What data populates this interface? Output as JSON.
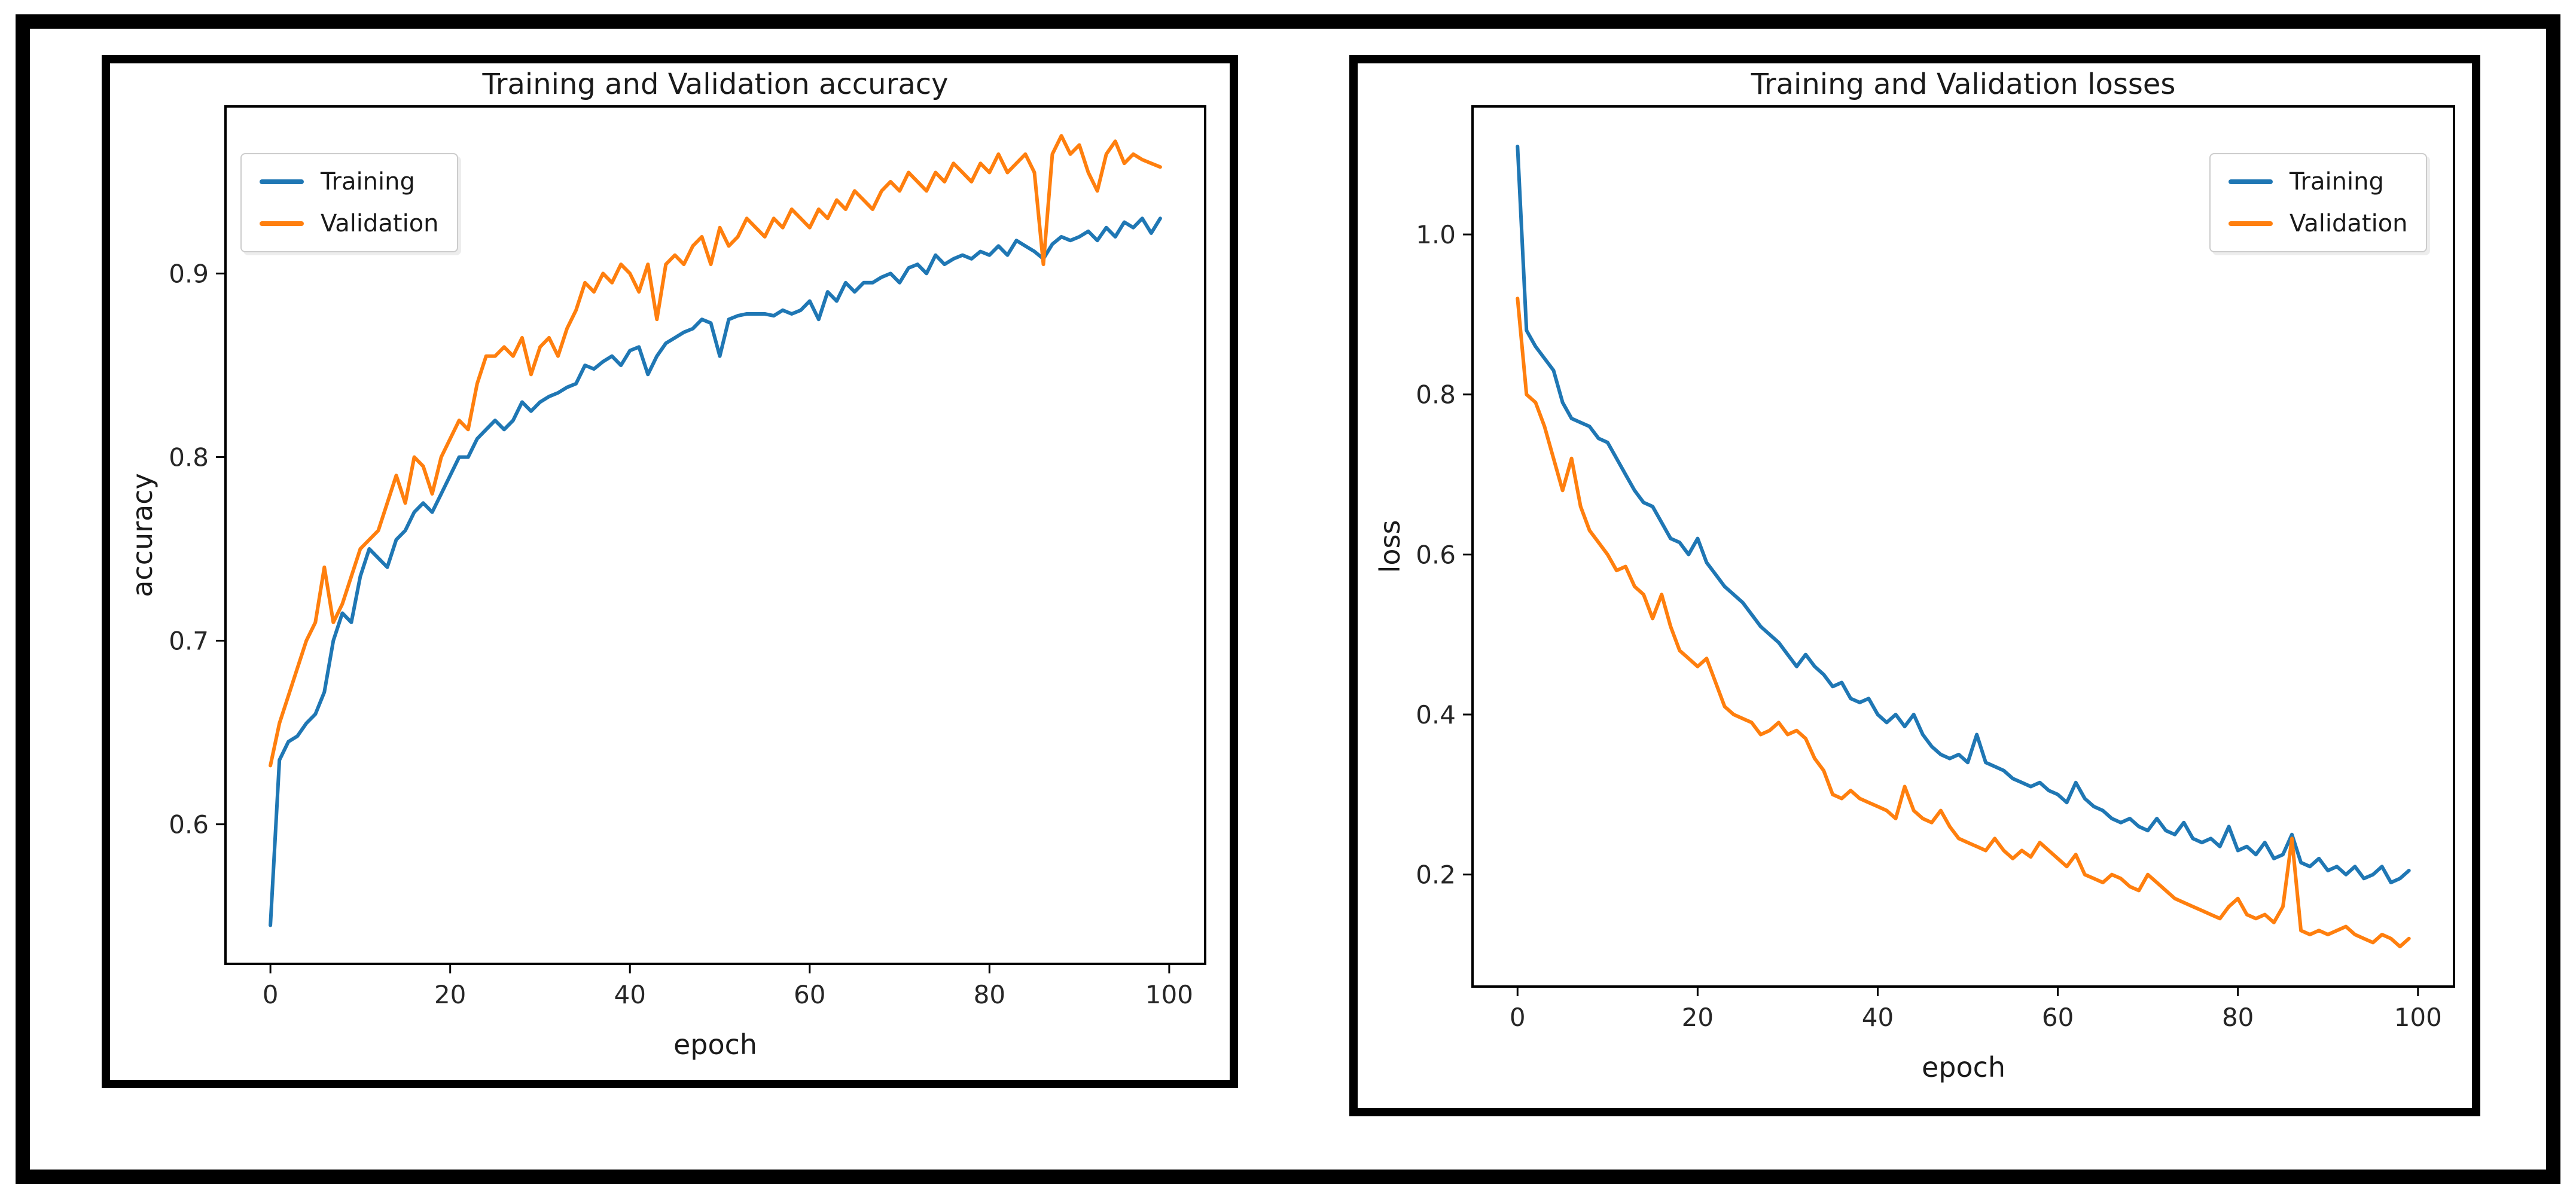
{
  "style": {
    "background": "#ffffff",
    "frame_color": "#000000",
    "spine_color": "#000000",
    "tick_color": "#262626",
    "text_color": "#1a1a1a",
    "legend_border": "#cccccc"
  },
  "chart_data": [
    {
      "id": "accuracy",
      "type": "line",
      "title": "Training and Validation accuracy",
      "xlabel": "epoch",
      "ylabel": "accuracy",
      "xlim": [
        -5,
        104
      ],
      "ylim": [
        0.524,
        0.991
      ],
      "xticks": [
        0,
        20,
        40,
        60,
        80,
        100
      ],
      "xtick_labels": [
        "0",
        "20",
        "40",
        "60",
        "80",
        "100"
      ],
      "yticks": [
        0.6,
        0.7,
        0.8,
        0.9
      ],
      "ytick_labels": [
        "0.6",
        "0.7",
        "0.8",
        "0.9"
      ],
      "grid": false,
      "legend_position": "upper left",
      "epochs": 100,
      "series": [
        {
          "name": "Training",
          "color": "#1f77b4",
          "values": [
            0.545,
            0.635,
            0.645,
            0.648,
            0.655,
            0.66,
            0.672,
            0.7,
            0.715,
            0.71,
            0.735,
            0.75,
            0.745,
            0.74,
            0.755,
            0.76,
            0.77,
            0.775,
            0.77,
            0.78,
            0.79,
            0.8,
            0.8,
            0.81,
            0.815,
            0.82,
            0.815,
            0.82,
            0.83,
            0.825,
            0.83,
            0.833,
            0.835,
            0.838,
            0.84,
            0.85,
            0.848,
            0.852,
            0.855,
            0.85,
            0.858,
            0.86,
            0.845,
            0.855,
            0.862,
            0.865,
            0.868,
            0.87,
            0.875,
            0.873,
            0.855,
            0.875,
            0.877,
            0.878,
            0.878,
            0.878,
            0.877,
            0.88,
            0.878,
            0.88,
            0.885,
            0.875,
            0.89,
            0.885,
            0.895,
            0.89,
            0.895,
            0.895,
            0.898,
            0.9,
            0.895,
            0.903,
            0.905,
            0.9,
            0.91,
            0.905,
            0.908,
            0.91,
            0.908,
            0.912,
            0.91,
            0.915,
            0.91,
            0.918,
            0.915,
            0.912,
            0.908,
            0.916,
            0.92,
            0.918,
            0.92,
            0.923,
            0.918,
            0.925,
            0.92,
            0.928,
            0.925,
            0.93,
            0.922,
            0.93
          ]
        },
        {
          "name": "Validation",
          "color": "#ff7f0e",
          "values": [
            0.632,
            0.655,
            0.67,
            0.685,
            0.7,
            0.71,
            0.74,
            0.71,
            0.72,
            0.735,
            0.75,
            0.755,
            0.76,
            0.775,
            0.79,
            0.775,
            0.8,
            0.795,
            0.78,
            0.8,
            0.81,
            0.82,
            0.815,
            0.84,
            0.855,
            0.855,
            0.86,
            0.855,
            0.865,
            0.845,
            0.86,
            0.865,
            0.855,
            0.87,
            0.88,
            0.895,
            0.89,
            0.9,
            0.895,
            0.905,
            0.9,
            0.89,
            0.905,
            0.875,
            0.905,
            0.91,
            0.905,
            0.915,
            0.92,
            0.905,
            0.925,
            0.915,
            0.92,
            0.93,
            0.925,
            0.92,
            0.93,
            0.925,
            0.935,
            0.93,
            0.925,
            0.935,
            0.93,
            0.94,
            0.935,
            0.945,
            0.94,
            0.935,
            0.945,
            0.95,
            0.945,
            0.955,
            0.95,
            0.945,
            0.955,
            0.95,
            0.96,
            0.955,
            0.95,
            0.96,
            0.955,
            0.965,
            0.955,
            0.96,
            0.965,
            0.955,
            0.905,
            0.965,
            0.975,
            0.965,
            0.97,
            0.955,
            0.945,
            0.965,
            0.972,
            0.96,
            0.965,
            0.962,
            0.96,
            0.958
          ]
        }
      ]
    },
    {
      "id": "loss",
      "type": "line",
      "title": "Training and Validation losses",
      "xlabel": "epoch",
      "ylabel": "loss",
      "xlim": [
        -5,
        104
      ],
      "ylim": [
        0.06,
        1.16
      ],
      "xticks": [
        0,
        20,
        40,
        60,
        80,
        100
      ],
      "xtick_labels": [
        "0",
        "20",
        "40",
        "60",
        "80",
        "100"
      ],
      "yticks": [
        0.2,
        0.4,
        0.6,
        0.8,
        1.0
      ],
      "ytick_labels": [
        "0.2",
        "0.4",
        "0.6",
        "0.8",
        "1.0"
      ],
      "grid": false,
      "legend_position": "upper right",
      "epochs": 100,
      "series": [
        {
          "name": "Training",
          "color": "#1f77b4",
          "values": [
            1.11,
            0.88,
            0.86,
            0.845,
            0.83,
            0.79,
            0.77,
            0.765,
            0.76,
            0.745,
            0.74,
            0.72,
            0.7,
            0.68,
            0.665,
            0.66,
            0.64,
            0.62,
            0.615,
            0.6,
            0.62,
            0.59,
            0.575,
            0.56,
            0.55,
            0.54,
            0.525,
            0.51,
            0.5,
            0.49,
            0.475,
            0.46,
            0.475,
            0.46,
            0.45,
            0.435,
            0.44,
            0.42,
            0.415,
            0.42,
            0.4,
            0.39,
            0.4,
            0.385,
            0.4,
            0.375,
            0.36,
            0.35,
            0.345,
            0.35,
            0.34,
            0.375,
            0.34,
            0.335,
            0.33,
            0.32,
            0.315,
            0.31,
            0.315,
            0.305,
            0.3,
            0.29,
            0.315,
            0.295,
            0.285,
            0.28,
            0.27,
            0.265,
            0.27,
            0.26,
            0.255,
            0.27,
            0.255,
            0.25,
            0.265,
            0.245,
            0.24,
            0.245,
            0.235,
            0.26,
            0.23,
            0.235,
            0.225,
            0.24,
            0.22,
            0.225,
            0.25,
            0.215,
            0.21,
            0.22,
            0.205,
            0.21,
            0.2,
            0.21,
            0.195,
            0.2,
            0.21,
            0.19,
            0.195,
            0.205
          ]
        },
        {
          "name": "Validation",
          "color": "#ff7f0e",
          "values": [
            0.92,
            0.8,
            0.79,
            0.76,
            0.72,
            0.68,
            0.72,
            0.66,
            0.63,
            0.615,
            0.6,
            0.58,
            0.585,
            0.56,
            0.55,
            0.52,
            0.55,
            0.51,
            0.48,
            0.47,
            0.46,
            0.47,
            0.44,
            0.41,
            0.4,
            0.395,
            0.39,
            0.375,
            0.38,
            0.39,
            0.375,
            0.38,
            0.37,
            0.345,
            0.33,
            0.3,
            0.295,
            0.305,
            0.295,
            0.29,
            0.285,
            0.28,
            0.27,
            0.31,
            0.28,
            0.27,
            0.265,
            0.28,
            0.26,
            0.245,
            0.24,
            0.235,
            0.23,
            0.245,
            0.23,
            0.22,
            0.23,
            0.222,
            0.24,
            0.23,
            0.22,
            0.21,
            0.225,
            0.2,
            0.195,
            0.19,
            0.2,
            0.195,
            0.185,
            0.18,
            0.2,
            0.19,
            0.18,
            0.17,
            0.165,
            0.16,
            0.155,
            0.15,
            0.145,
            0.16,
            0.17,
            0.15,
            0.145,
            0.15,
            0.14,
            0.16,
            0.245,
            0.13,
            0.125,
            0.13,
            0.125,
            0.13,
            0.135,
            0.125,
            0.12,
            0.115,
            0.125,
            0.12,
            0.11,
            0.12
          ]
        }
      ]
    }
  ]
}
